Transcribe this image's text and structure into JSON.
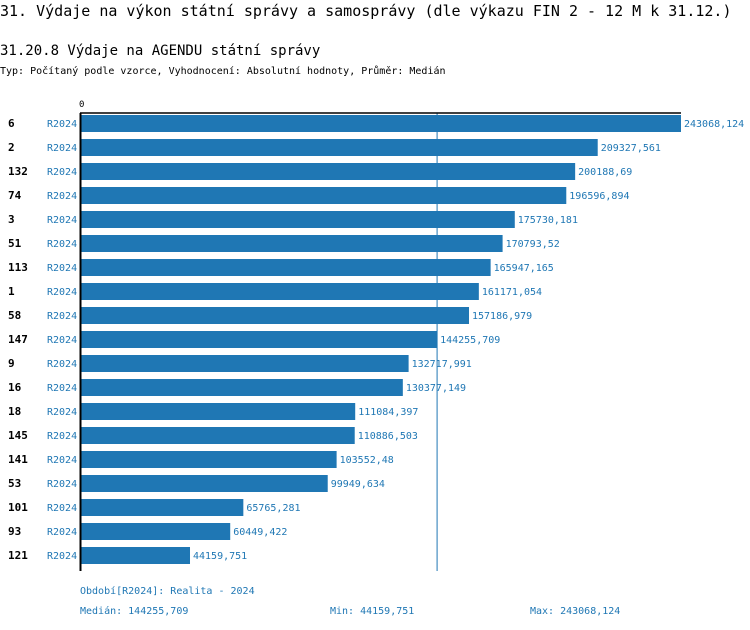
{
  "section_title": "31. Výdaje na výkon státní správy a samosprávy (dle výkazu FIN 2 - 12 M k 31.12.)",
  "chart_title": "31.20.8 Výdaje na AGENDU státní správy",
  "subtitle": "Typ: Počítaný podle vzorce, Vyhodnocení: Absolutní hodnoty, Průměr: Medián",
  "chart_data": {
    "type": "bar",
    "orientation": "horizontal",
    "x_tick": "0",
    "xlim": [
      0,
      243068.124
    ],
    "bar_color": "#1f77b4",
    "median_line": 144255.709,
    "categories": [
      "6",
      "2",
      "132",
      "74",
      "3",
      "51",
      "113",
      "1",
      "58",
      "147",
      "9",
      "16",
      "18",
      "145",
      "141",
      "53",
      "101",
      "93",
      "121"
    ],
    "period_labels": [
      "R2024",
      "R2024",
      "R2024",
      "R2024",
      "R2024",
      "R2024",
      "R2024",
      "R2024",
      "R2024",
      "R2024",
      "R2024",
      "R2024",
      "R2024",
      "R2024",
      "R2024",
      "R2024",
      "R2024",
      "R2024",
      "R2024"
    ],
    "values": [
      243068.124,
      209327.561,
      200188.69,
      196596.894,
      175730.181,
      170793.52,
      165947.165,
      161171.054,
      157186.979,
      144255.709,
      132717.991,
      130377.149,
      111084.397,
      110886.503,
      103552.48,
      99949.634,
      65765.281,
      60449.422,
      44159.751
    ],
    "value_labels": [
      "243068,124",
      "209327,561",
      "200188,69",
      "196596,894",
      "175730,181",
      "170793,52",
      "165947,165",
      "161171,054",
      "157186,979",
      "144255,709",
      "132717,991",
      "130377,149",
      "111084,397",
      "110886,503",
      "103552,48",
      "99949,634",
      "65765,281",
      "60449,422",
      "44159,751"
    ]
  },
  "legend": {
    "period": "Období[R2024]: Realita - 2024",
    "median": "Medián: 144255,709",
    "min": "Min: 44159,751",
    "max": "Max: 243068,124"
  }
}
